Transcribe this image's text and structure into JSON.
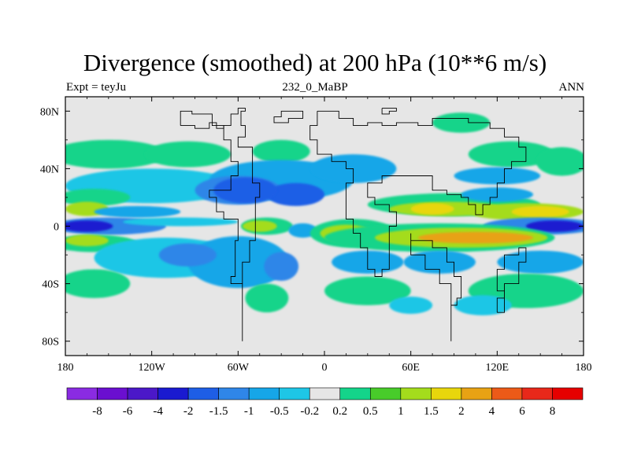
{
  "chart_data": {
    "type": "heatmap",
    "title": "Divergence (smoothed) at 200 hPa (10**6 m/s)",
    "left_string": "Expt = teyJu",
    "center_string": "232_0_MaBP",
    "right_string": "ANN",
    "x_axis": {
      "range": [
        -180,
        180
      ],
      "ticks": [
        -180,
        -120,
        -60,
        0,
        60,
        120,
        180
      ],
      "tick_labels": [
        "180",
        "120W",
        "60W",
        "0",
        "60E",
        "120E",
        "180"
      ]
    },
    "y_axis": {
      "range": [
        -90,
        90
      ],
      "ticks": [
        80,
        40,
        0,
        -40,
        -80
      ],
      "tick_labels": [
        "80N",
        "40N",
        "0",
        "40S",
        "80S"
      ]
    },
    "colorbar": {
      "levels": [
        -8,
        -6,
        -4,
        -2,
        -1.5,
        -1,
        -0.5,
        -0.2,
        0.2,
        0.5,
        1,
        1.5,
        2,
        4,
        6,
        8
      ],
      "level_labels": [
        "-8",
        "-6",
        "-4",
        "-2",
        "-1.5",
        "-1",
        "-0.5",
        "-0.2",
        "0.2",
        "0.5",
        "1",
        "1.5",
        "2",
        "4",
        "6",
        "8"
      ],
      "colors": [
        "#8a2be2",
        "#6a0fd0",
        "#4b18c8",
        "#1a1ad0",
        "#1e5ee6",
        "#2f86e8",
        "#16a6e8",
        "#1ec6e6",
        "#e6e6e6",
        "#14d48a",
        "#48cc2a",
        "#a4dc1c",
        "#e8d60c",
        "#e8a214",
        "#ec5a18",
        "#e8281a",
        "#e60000"
      ]
    },
    "background_color": "#e6e6e6",
    "field_blobs": [
      {
        "lon": -150,
        "lat": 50,
        "rx": 40,
        "ry": 10,
        "bin": 9
      },
      {
        "lon": -95,
        "lat": 50,
        "rx": 30,
        "ry": 9,
        "bin": 9
      },
      {
        "lon": -30,
        "lat": 52,
        "rx": 20,
        "ry": 8,
        "bin": 9
      },
      {
        "lon": 130,
        "lat": 50,
        "rx": 30,
        "ry": 9,
        "bin": 9
      },
      {
        "lon": 165,
        "lat": 45,
        "rx": 18,
        "ry": 10,
        "bin": 9
      },
      {
        "lon": 95,
        "lat": 72,
        "rx": 20,
        "ry": 7,
        "bin": 9
      },
      {
        "lon": 120,
        "lat": 35,
        "rx": 30,
        "ry": 6,
        "bin": 6
      },
      {
        "lon": -120,
        "lat": 28,
        "rx": 60,
        "ry": 12,
        "bin": 7
      },
      {
        "lon": -30,
        "lat": 32,
        "rx": 50,
        "ry": 14,
        "bin": 6
      },
      {
        "lon": -60,
        "lat": 25,
        "rx": 30,
        "ry": 10,
        "bin": 5
      },
      {
        "lon": 20,
        "lat": 40,
        "rx": 30,
        "ry": 10,
        "bin": 6
      },
      {
        "lon": -20,
        "lat": 22,
        "rx": 20,
        "ry": 8,
        "bin": 4
      },
      {
        "lon": -55,
        "lat": 25,
        "rx": 22,
        "ry": 9,
        "bin": 4
      },
      {
        "lon": -160,
        "lat": 20,
        "rx": 25,
        "ry": 6,
        "bin": 9
      },
      {
        "lon": -165,
        "lat": 12,
        "rx": 15,
        "ry": 5,
        "bin": 11
      },
      {
        "lon": -130,
        "lat": 10,
        "rx": 30,
        "ry": 4,
        "bin": 6
      },
      {
        "lon": 90,
        "lat": 15,
        "rx": 60,
        "ry": 8,
        "bin": 9
      },
      {
        "lon": 85,
        "lat": 12,
        "rx": 40,
        "ry": 5,
        "bin": 11
      },
      {
        "lon": 75,
        "lat": 12,
        "rx": 15,
        "ry": 4,
        "bin": 12
      },
      {
        "lon": 140,
        "lat": 10,
        "rx": 40,
        "ry": 6,
        "bin": 11
      },
      {
        "lon": 150,
        "lat": 10,
        "rx": 20,
        "ry": 4,
        "bin": 12
      },
      {
        "lon": 120,
        "lat": 22,
        "rx": 25,
        "ry": 5,
        "bin": 6
      },
      {
        "lon": -150,
        "lat": 0,
        "rx": 40,
        "ry": 6,
        "bin": 5
      },
      {
        "lon": -165,
        "lat": 0,
        "rx": 18,
        "ry": 4,
        "bin": 3
      },
      {
        "lon": 150,
        "lat": 0,
        "rx": 40,
        "ry": 6,
        "bin": 5
      },
      {
        "lon": 160,
        "lat": 0,
        "rx": 20,
        "ry": 4,
        "bin": 3
      },
      {
        "lon": -100,
        "lat": 3,
        "rx": 40,
        "ry": 3,
        "bin": 7
      },
      {
        "lon": -40,
        "lat": 0,
        "rx": 18,
        "ry": 6,
        "bin": 9
      },
      {
        "lon": -45,
        "lat": 0,
        "rx": 12,
        "ry": 4,
        "bin": 11
      },
      {
        "lon": -15,
        "lat": -3,
        "rx": 10,
        "ry": 5,
        "bin": 6
      },
      {
        "lon": -160,
        "lat": -12,
        "rx": 30,
        "ry": 6,
        "bin": 9
      },
      {
        "lon": -165,
        "lat": -10,
        "rx": 15,
        "ry": 4,
        "bin": 11
      },
      {
        "lon": 20,
        "lat": -5,
        "rx": 30,
        "ry": 10,
        "bin": 9
      },
      {
        "lon": 15,
        "lat": -5,
        "rx": 18,
        "ry": 6,
        "bin": 11
      },
      {
        "lon": 80,
        "lat": -8,
        "rx": 80,
        "ry": 10,
        "bin": 9
      },
      {
        "lon": 95,
        "lat": -8,
        "rx": 60,
        "ry": 7,
        "bin": 11
      },
      {
        "lon": 105,
        "lat": -8,
        "rx": 40,
        "ry": 4,
        "bin": 13
      },
      {
        "lon": -110,
        "lat": -22,
        "rx": 50,
        "ry": 14,
        "bin": 7
      },
      {
        "lon": -60,
        "lat": -25,
        "rx": 35,
        "ry": 18,
        "bin": 6
      },
      {
        "lon": -95,
        "lat": -20,
        "rx": 20,
        "ry": 8,
        "bin": 5
      },
      {
        "lon": -30,
        "lat": -28,
        "rx": 12,
        "ry": 10,
        "bin": 5
      },
      {
        "lon": 30,
        "lat": -25,
        "rx": 25,
        "ry": 8,
        "bin": 6
      },
      {
        "lon": 80,
        "lat": -25,
        "rx": 25,
        "ry": 8,
        "bin": 6
      },
      {
        "lon": 150,
        "lat": -25,
        "rx": 30,
        "ry": 8,
        "bin": 6
      },
      {
        "lon": -160,
        "lat": -40,
        "rx": 25,
        "ry": 10,
        "bin": 9
      },
      {
        "lon": -40,
        "lat": -50,
        "rx": 15,
        "ry": 10,
        "bin": 9
      },
      {
        "lon": 30,
        "lat": -45,
        "rx": 30,
        "ry": 10,
        "bin": 9
      },
      {
        "lon": 140,
        "lat": -45,
        "rx": 40,
        "ry": 12,
        "bin": 9
      },
      {
        "lon": 110,
        "lat": -55,
        "rx": 20,
        "ry": 7,
        "bin": 7
      },
      {
        "lon": 60,
        "lat": -55,
        "rx": 15,
        "ry": 6,
        "bin": 7
      }
    ]
  }
}
